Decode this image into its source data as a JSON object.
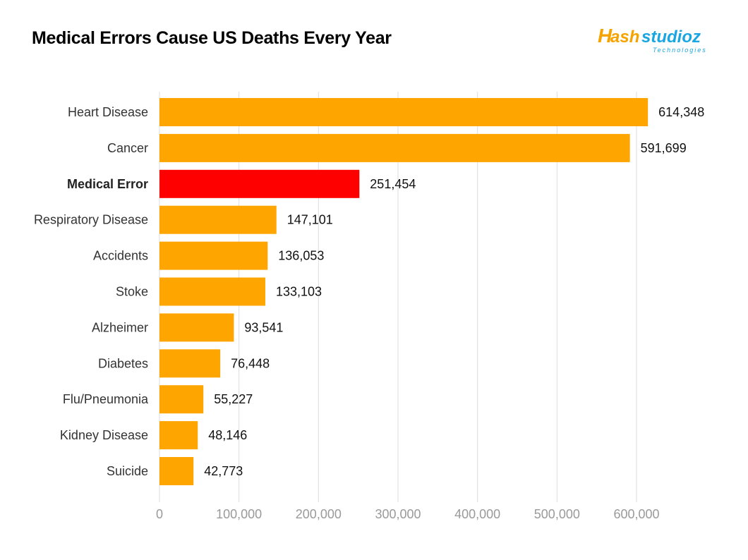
{
  "title": "Medical Errors Cause US Deaths Every Year",
  "logo": {
    "brand": "Hashstudioz",
    "tagline": "Technologies",
    "colors": {
      "primary": "#F5A300",
      "secondary": "#1AA6E0"
    }
  },
  "colors": {
    "bar": "#FFA500",
    "highlight_bar": "#FF0000",
    "grid": "#DDDDDD",
    "tick_text": "#9A9A9A"
  },
  "chart_data": {
    "type": "bar",
    "orientation": "horizontal",
    "title": "Medical Errors Cause US Deaths Every Year",
    "categories": [
      "Heart Disease",
      "Cancer",
      "Medical Error",
      "Respiratory Disease",
      "Accidents",
      "Stoke",
      "Alzheimer",
      "Diabetes",
      "Flu/Pneumonia",
      "Kidney Disease",
      "Suicide"
    ],
    "values": [
      614348,
      591699,
      251454,
      147101,
      136053,
      133103,
      93541,
      76448,
      55227,
      48146,
      42773
    ],
    "value_labels": [
      "614,348",
      "591,699",
      "251,454",
      "147,101",
      "136,053",
      "133,103",
      "93,541",
      "76,448",
      "55,227",
      "48,146",
      "42,773"
    ],
    "highlight_category": "Medical Error",
    "xlim": [
      0,
      600000
    ],
    "xticks": [
      0,
      100000,
      200000,
      300000,
      400000,
      500000,
      600000
    ],
    "xtick_labels": [
      "0",
      "100,000",
      "200,000",
      "300,000",
      "400,000",
      "500,000",
      "600,000"
    ],
    "grid": "vertical",
    "legend": "none"
  }
}
